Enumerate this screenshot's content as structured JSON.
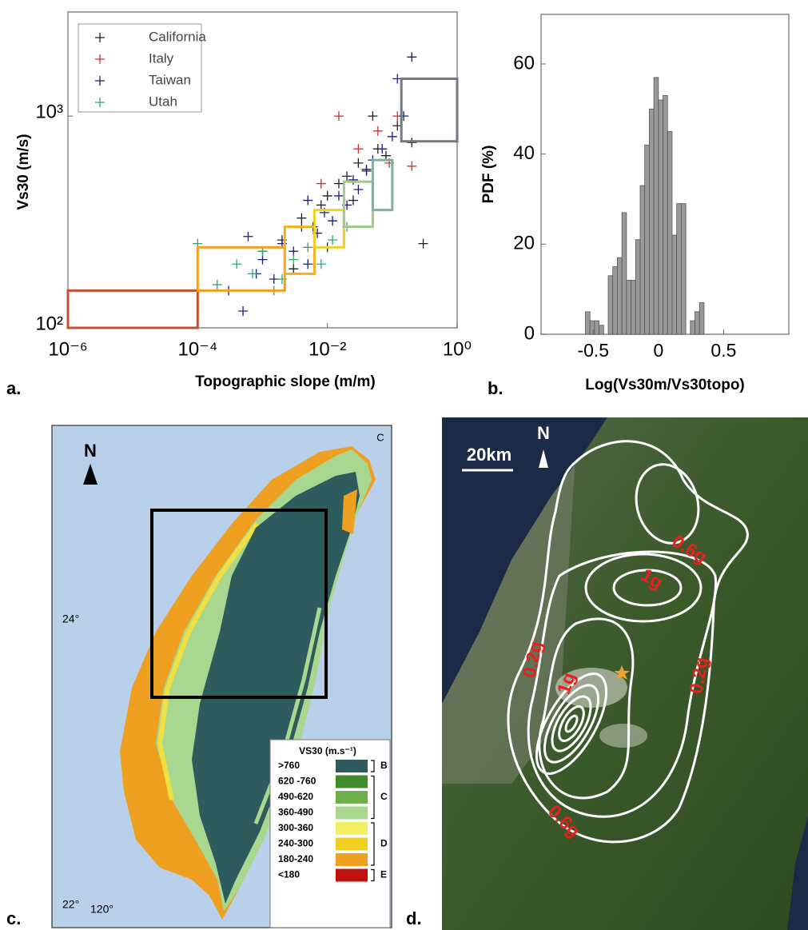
{
  "chart_data": [
    {
      "type": "scatter",
      "panel_label": "a.",
      "xlabel": "Topographic slope (m/m)",
      "ylabel": "Vs30 (m/s)",
      "xscale": "log",
      "yscale": "log",
      "xlim": [
        1e-06,
        1
      ],
      "ylim": [
        100,
        3100
      ],
      "xticks": [
        {
          "value": 1e-06,
          "label": "10⁻⁶"
        },
        {
          "value": 0.0001,
          "label": "10⁻⁴"
        },
        {
          "value": 0.01,
          "label": "10⁻²"
        },
        {
          "value": 1,
          "label": "10⁰"
        }
      ],
      "yticks": [
        {
          "value": 100,
          "label": "10²"
        },
        {
          "value": 1000,
          "label": "10³"
        }
      ],
      "legend": "upper left",
      "series": [
        {
          "name": "California",
          "color": "#222222",
          "x": [
            0.001,
            0.002,
            0.004,
            0.006,
            0.008,
            0.01,
            0.015,
            0.02,
            0.03,
            0.04,
            0.06,
            0.08,
            0.12,
            0.2,
            0.3,
            0.05,
            0.025,
            0.003
          ],
          "values": [
            230,
            260,
            330,
            300,
            380,
            420,
            480,
            520,
            600,
            560,
            700,
            650,
            900,
            750,
            250,
            1000,
            400,
            190
          ]
        },
        {
          "name": "Italy",
          "color": "#d03030",
          "x": [
            0.015,
            0.03,
            0.06,
            0.09,
            0.12,
            0.2,
            0.008
          ],
          "values": [
            1000,
            700,
            850,
            600,
            1000,
            580,
            480
          ]
        },
        {
          "name": "Taiwan",
          "color": "#1c1c7a",
          "x": [
            0.0003,
            0.0005,
            0.0008,
            0.001,
            0.0015,
            0.002,
            0.003,
            0.004,
            0.005,
            0.007,
            0.009,
            0.012,
            0.015,
            0.02,
            0.025,
            0.03,
            0.04,
            0.05,
            0.07,
            0.1,
            0.15,
            0.2,
            0.0006,
            0.01,
            0.12,
            0.005
          ],
          "values": [
            150,
            120,
            180,
            210,
            170,
            250,
            230,
            300,
            200,
            280,
            350,
            320,
            420,
            380,
            500,
            450,
            550,
            620,
            700,
            800,
            1000,
            1900,
            270,
            240,
            1500,
            400
          ]
        },
        {
          "name": "Utah",
          "color": "#2ea870",
          "x": [
            0.0001,
            0.0002,
            0.0004,
            0.0007,
            0.001,
            0.002,
            0.003,
            0.005,
            0.008,
            0.012,
            0.02,
            0.0015
          ],
          "values": [
            250,
            160,
            200,
            180,
            230,
            170,
            210,
            240,
            200,
            260,
            300,
            150
          ]
        }
      ],
      "boxes": [
        {
          "xlim": [
            1e-06,
            0.0001
          ],
          "ylim": [
            100,
            150
          ],
          "color": "#c0502f"
        },
        {
          "xlim": [
            0.0001,
            0.0022
          ],
          "ylim": [
            150,
            240
          ],
          "color": "#f0a020"
        },
        {
          "xlim": [
            0.0022,
            0.0063
          ],
          "ylim": [
            180,
            300
          ],
          "color": "#f0b020"
        },
        {
          "xlim": [
            0.0063,
            0.018
          ],
          "ylim": [
            240,
            360
          ],
          "color": "#f0d020"
        },
        {
          "xlim": [
            0.018,
            0.05
          ],
          "ylim": [
            300,
            490
          ],
          "color": "#a0c890"
        },
        {
          "xlim": [
            0.05,
            0.1
          ],
          "ylim": [
            360,
            620
          ],
          "color": "#80b0a0"
        },
        {
          "xlim": [
            0.138,
            1
          ],
          "ylim": [
            760,
            1500
          ],
          "color": "#707a80"
        }
      ]
    },
    {
      "type": "histogram",
      "panel_label": "b.",
      "xlabel": "Log(Vs30m/Vs30topo)",
      "ylabel": "PDF (%)",
      "color": "#999999",
      "xlim": [
        -0.9,
        1
      ],
      "ylim": [
        0,
        71
      ],
      "xticks": [
        -0.5,
        0,
        0.5
      ],
      "yticks": [
        0,
        20,
        40,
        60
      ],
      "bins": [
        -0.56,
        -0.525,
        -0.49,
        -0.455,
        -0.42,
        -0.385,
        -0.35,
        -0.315,
        -0.28,
        -0.245,
        -0.21,
        -0.175,
        -0.14,
        -0.105,
        -0.07,
        -0.035,
        0,
        0.035,
        0.07,
        0.105,
        0.14,
        0.175,
        0.21,
        0.245,
        0.28,
        0.315,
        0.35,
        0.385
      ],
      "values": [
        5,
        3,
        3,
        2,
        0,
        13,
        15,
        17,
        27,
        12,
        12,
        21,
        33,
        42,
        50,
        57,
        52,
        53,
        45,
        22,
        29,
        29,
        0,
        3,
        5,
        7,
        0
      ]
    }
  ],
  "map_c": {
    "panel_label": "c.",
    "north": "N",
    "corner_label": "C",
    "lat_label": "24°",
    "lat_label_south": "22°",
    "lon_label": "120°",
    "legend_title": "VS30 (m.s⁻¹)",
    "legend": [
      {
        "label": ">760",
        "color": "#2d5b5e"
      },
      {
        "label": "620 -760",
        "color": "#3f8a2a"
      },
      {
        "label": "490-620",
        "color": "#6fb04a"
      },
      {
        "label": "360-490",
        "color": "#a8d890"
      },
      {
        "label": "300-360",
        "color": "#f0f060"
      },
      {
        "label": "240-300",
        "color": "#f0d020"
      },
      {
        "label": "180-240",
        "color": "#f0a020"
      },
      {
        "label": "<180",
        "color": "#c01010"
      }
    ],
    "classes": [
      "B",
      "C",
      "D",
      "E"
    ]
  },
  "map_d": {
    "panel_label": "d.",
    "scale": "20km",
    "north": "N",
    "contour_labels": [
      "0.6g",
      "1g",
      "0.2g",
      "1g",
      "0.2g",
      "0.6g"
    ]
  }
}
